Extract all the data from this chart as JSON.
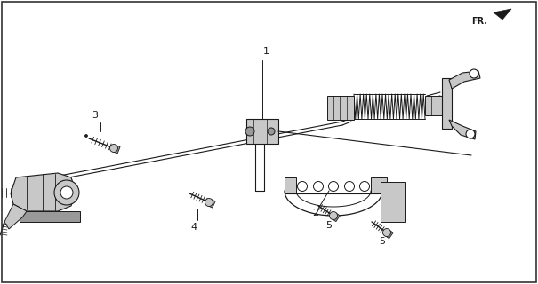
{
  "bg_color": "#ffffff",
  "fg_color": "#1a1a1a",
  "fig_width": 6.05,
  "fig_height": 3.2,
  "dpi": 100,
  "border_color": "#333333",
  "gray_light": "#c8c8c8",
  "gray_mid": "#999999",
  "gray_dark": "#555555"
}
